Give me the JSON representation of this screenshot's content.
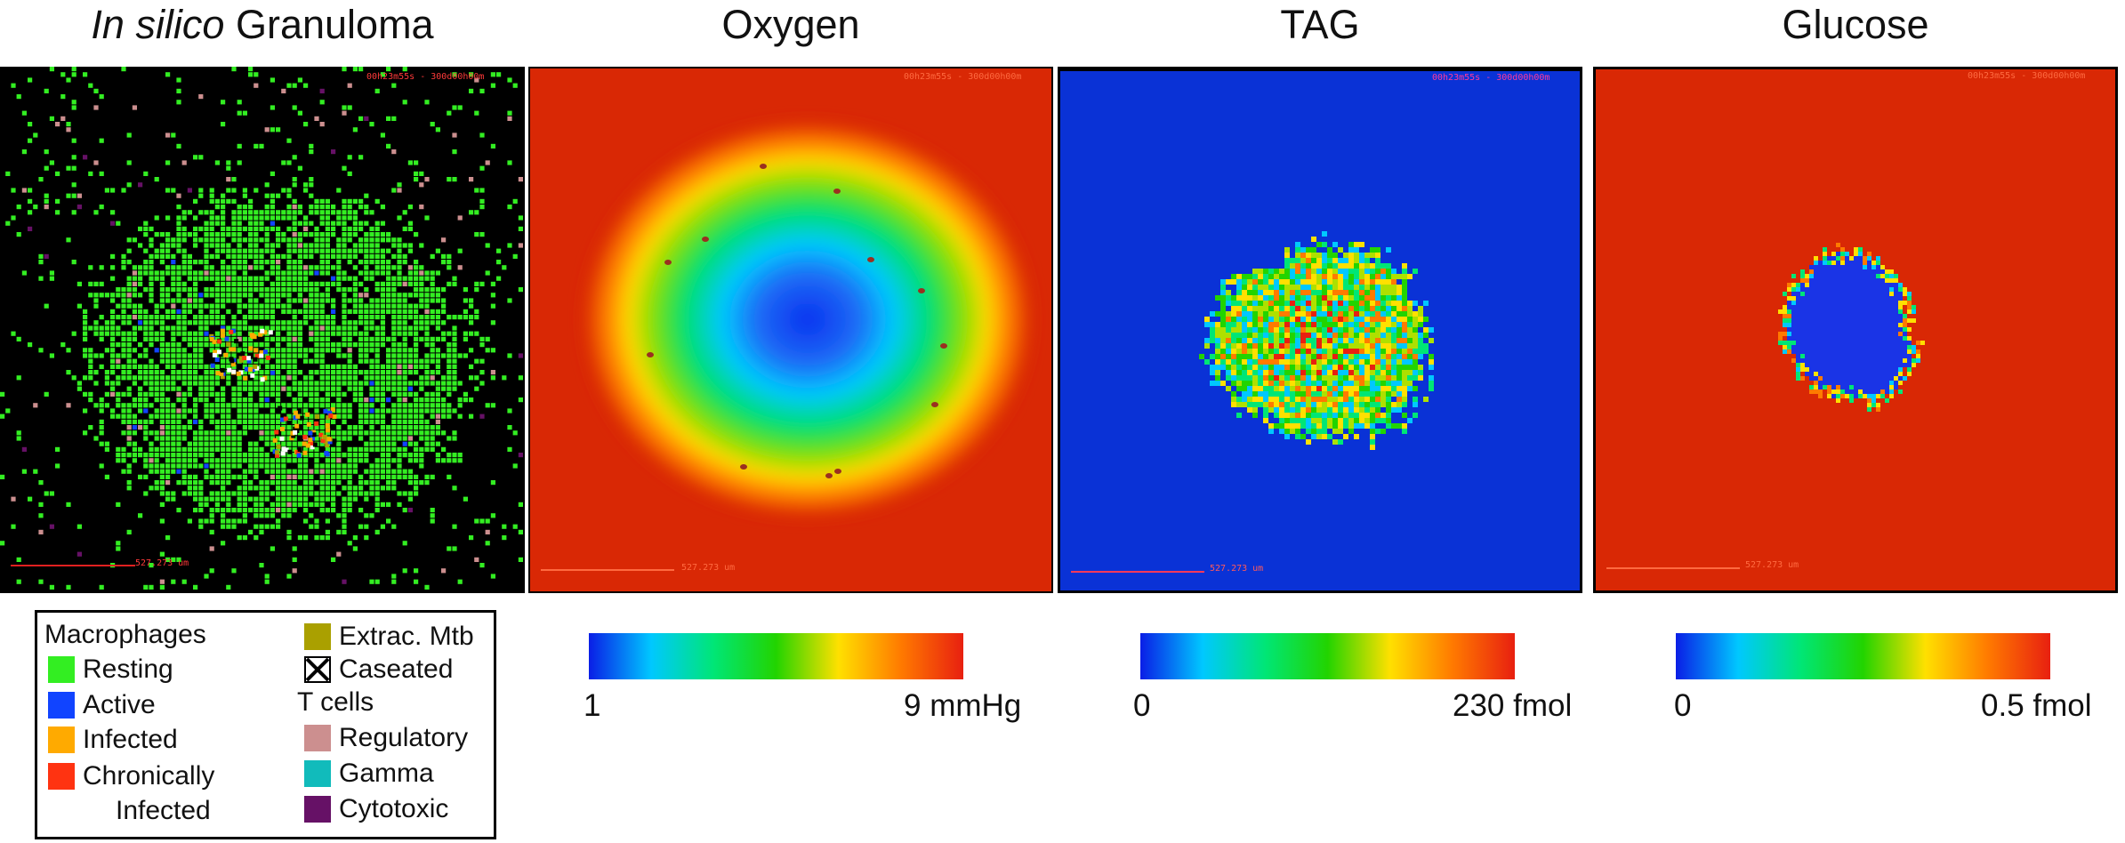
{
  "titles": {
    "granuloma_italic": "In silico",
    "granuloma_rest": " Granuloma",
    "oxygen": "Oxygen",
    "tag": "TAG",
    "glucose": "Glucose"
  },
  "overlays": {
    "timestamps": [
      "00h23m55s - 300d00h00m",
      "00h23m55s - 300d00h00m",
      "00h23m55s - 300d00h00m",
      "00h23m55s - 300d00h00m"
    ],
    "scale_label": "527.273 um"
  },
  "colorbars": {
    "oxygen": {
      "min": "1",
      "max": "9 mmHg"
    },
    "tag": {
      "min": "0",
      "max": "230 fmol"
    },
    "glucose": {
      "min": "0",
      "max": "0.5 fmol"
    },
    "gradient": [
      "#0a1ee6",
      "#00c8ff",
      "#00e676",
      "#22d400",
      "#ffe000",
      "#ff7a00",
      "#e82010"
    ]
  },
  "legend": {
    "macrophages_header": "Macrophages",
    "macrophages": [
      {
        "label": "Resting",
        "color": "#33ee22"
      },
      {
        "label": "Active",
        "color": "#1144ff"
      },
      {
        "label": "Infected",
        "color": "#ffaa00"
      },
      {
        "label": "Chronically",
        "color": "#ff3311"
      }
    ],
    "chronic_line2": "Infected",
    "extrac": {
      "label": "Extrac. Mtb",
      "color": "#aaa000"
    },
    "caseated": {
      "label": "Caseated",
      "color": "#ffffff"
    },
    "tcells_header": "T cells",
    "tcells": [
      {
        "label": "Regulatory",
        "color": "#cc8f8f"
      },
      {
        "label": "Gamma",
        "color": "#11bbbb"
      },
      {
        "label": "Cytotoxic",
        "color": "#661166"
      }
    ]
  }
}
